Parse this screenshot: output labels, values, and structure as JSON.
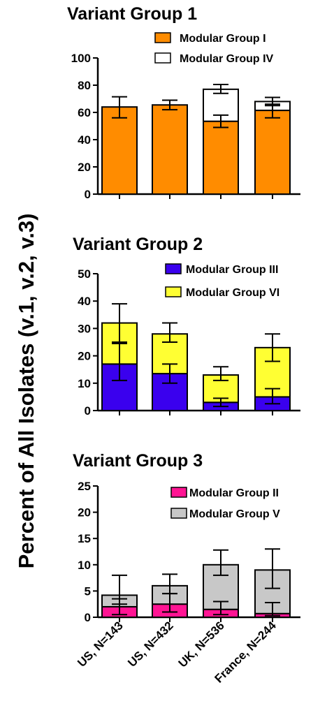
{
  "ylabel": "Percent of All Isolates (v.1, v.2, v.3)",
  "categories": [
    "US, N=143",
    "US, N=432",
    "UK, N=536",
    "France, N=244"
  ],
  "chart_data": [
    {
      "type": "bar",
      "stacked": true,
      "title": "Variant Group 1",
      "categories": [
        "US, N=143",
        "US, N=432",
        "UK, N=536",
        "France, N=244"
      ],
      "ylim": [
        0,
        100
      ],
      "yticks": [
        "0",
        "20",
        "40",
        "60",
        "80",
        "100"
      ],
      "legend_position": "top-right",
      "series": [
        {
          "name": "Modular Group I",
          "color": "#FF8C00",
          "values": [
            64,
            65.5,
            53.5,
            61.5
          ],
          "error_low": [
            56,
            62,
            49,
            56
          ],
          "error_high": [
            71.5,
            69,
            58,
            66
          ]
        },
        {
          "name": "Modular Group IV",
          "color": "#FFFFFF",
          "values": [
            0,
            0,
            23.5,
            6.5
          ],
          "error_low": [
            null,
            null,
            74,
            65
          ],
          "error_high": [
            null,
            null,
            80.5,
            71
          ]
        }
      ]
    },
    {
      "type": "bar",
      "stacked": true,
      "title": "Variant Group 2",
      "categories": [
        "US, N=143",
        "US, N=432",
        "UK, N=536",
        "France, N=244"
      ],
      "ylim": [
        0,
        50
      ],
      "yticks": [
        "0",
        "10",
        "20",
        "30",
        "40",
        "50"
      ],
      "legend_position": "top-right",
      "series": [
        {
          "name": "Modular Group III",
          "color": "#3A00EE",
          "values": [
            17,
            13.5,
            3,
            5
          ],
          "error_low": [
            11,
            10,
            1.5,
            2.5
          ],
          "error_high": [
            24.5,
            17,
            4.5,
            8
          ]
        },
        {
          "name": "Modular Group VI",
          "color": "#FFFF33",
          "values": [
            15,
            14.5,
            10,
            18
          ],
          "error_low": [
            25,
            25,
            11,
            18
          ],
          "error_high": [
            39,
            32,
            16,
            28
          ]
        }
      ]
    },
    {
      "type": "bar",
      "stacked": true,
      "title": "Variant Group 3",
      "categories": [
        "US, N=143",
        "US, N=432",
        "UK, N=536",
        "France, N=244"
      ],
      "ylim": [
        0,
        25
      ],
      "yticks": [
        "0",
        "5",
        "10",
        "15",
        "20",
        "25"
      ],
      "legend_position": "top-right",
      "series": [
        {
          "name": "Modular Group II",
          "color": "#FF1493",
          "values": [
            2,
            2.5,
            1.5,
            0.7
          ],
          "error_low": [
            0.5,
            1,
            0.5,
            0.3
          ],
          "error_high": [
            3.5,
            4.5,
            3,
            2.8
          ]
        },
        {
          "name": "Modular Group V",
          "color": "#C8C8C8",
          "values": [
            2.2,
            3.5,
            8.5,
            8.3
          ],
          "error_low": [
            2.5,
            4.5,
            8,
            5.5
          ],
          "error_high": [
            8,
            8.2,
            12.8,
            13
          ]
        }
      ]
    }
  ]
}
